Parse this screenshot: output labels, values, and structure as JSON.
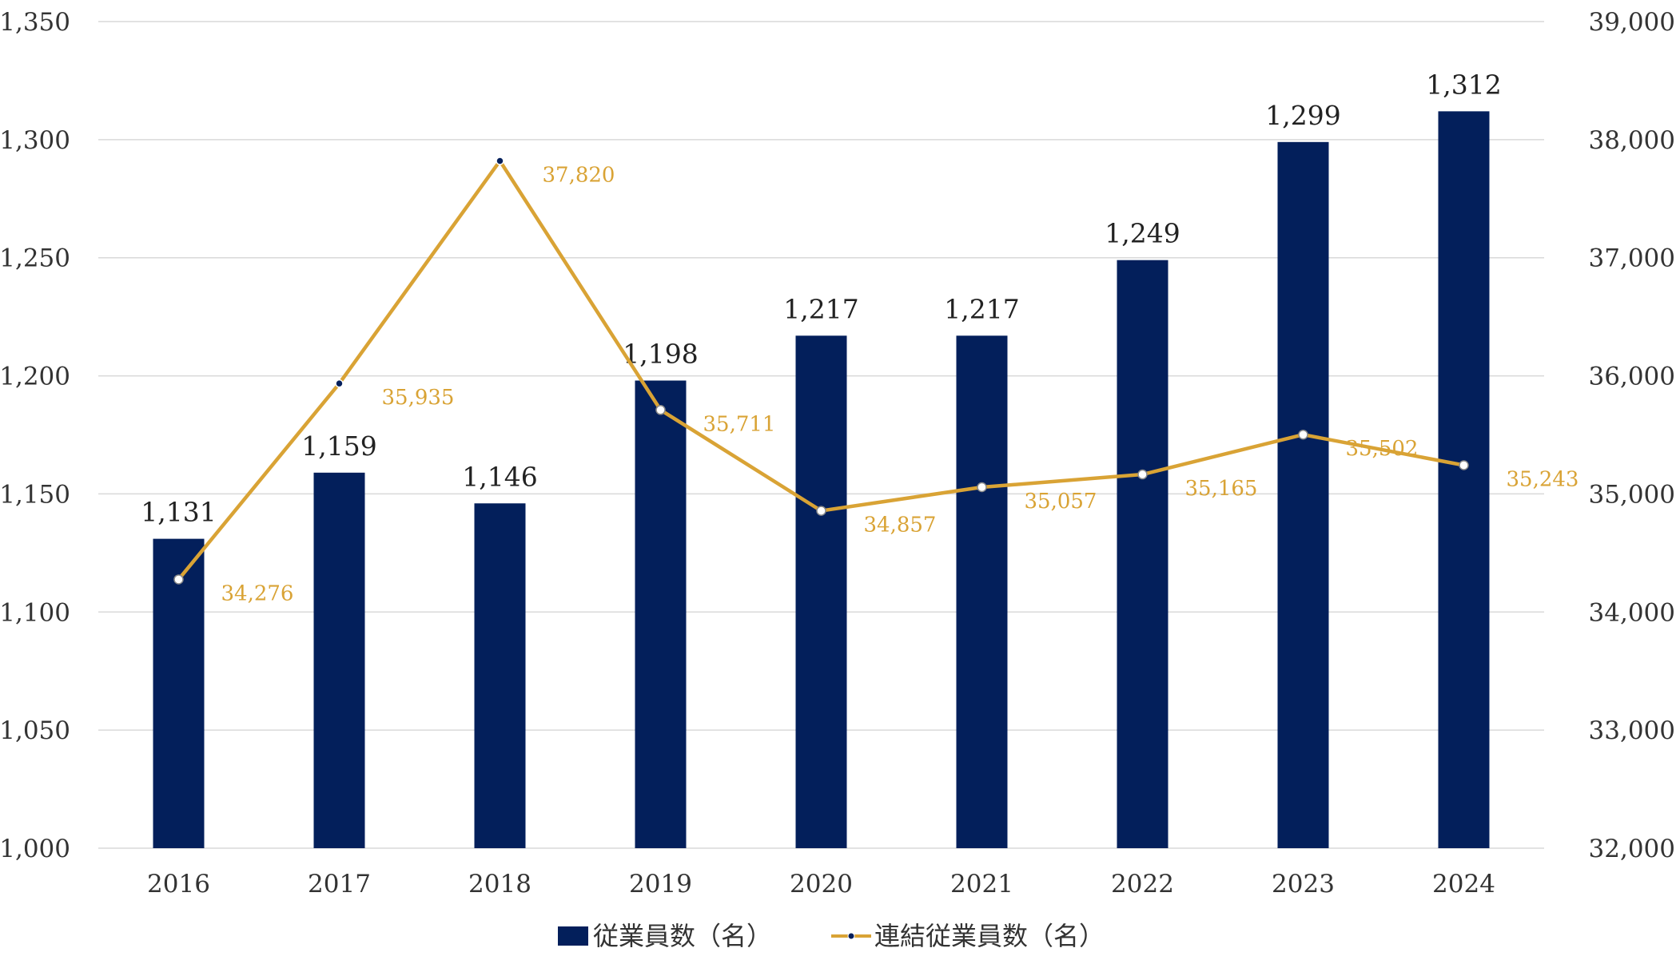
{
  "chart_data": {
    "type": "bar",
    "categories": [
      "2016",
      "2017",
      "2018",
      "2019",
      "2020",
      "2021",
      "2022",
      "2023",
      "2024"
    ],
    "series": [
      {
        "name": "従業員数（名）",
        "type": "bar",
        "axis": "left",
        "color": "#031F5B",
        "values": [
          1131,
          1159,
          1146,
          1198,
          1217,
          1217,
          1249,
          1299,
          1312
        ],
        "labels": [
          "1,131",
          "1,159",
          "1,146",
          "1,198",
          "1,217",
          "1,217",
          "1,249",
          "1,299",
          "1,312"
        ]
      },
      {
        "name": "連結従業員数（名）",
        "type": "line",
        "axis": "right",
        "color": "#D9A335",
        "values": [
          34276,
          35935,
          37820,
          35711,
          34857,
          35057,
          35165,
          35502,
          35243
        ],
        "labels": [
          "34,276",
          "35,935",
          "37,820",
          "35,711",
          "34,857",
          "35,057",
          "35,165",
          "35,502",
          "35,243"
        ]
      }
    ],
    "y_left": {
      "range": [
        1000,
        1350
      ],
      "ticks": [
        "1,000",
        "1,050",
        "1,100",
        "1,150",
        "1,200",
        "1,250",
        "1,300",
        "1,350"
      ]
    },
    "y_right": {
      "range": [
        32000,
        39000
      ],
      "ticks": [
        "32,000",
        "33,000",
        "34,000",
        "35,000",
        "36,000",
        "37,000",
        "38,000",
        "39,000"
      ]
    },
    "grid": true,
    "legend": "bottom"
  }
}
